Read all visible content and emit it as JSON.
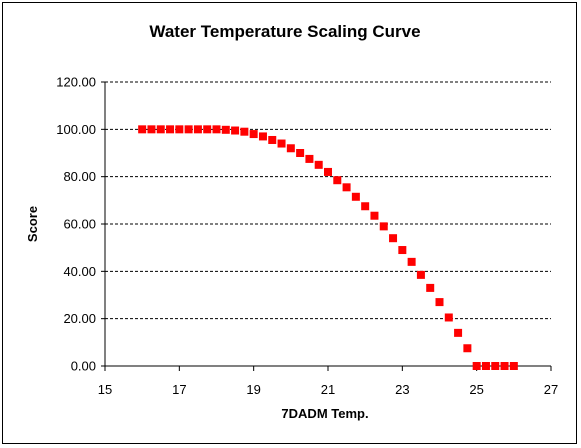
{
  "chart_data": {
    "type": "scatter",
    "title": "Water Temperature Scaling Curve",
    "xlabel": "7DADM Temp.",
    "ylabel": "Score",
    "xlim": [
      15,
      27
    ],
    "ylim": [
      0,
      120
    ],
    "x_ticks": [
      "15",
      "17",
      "19",
      "21",
      "23",
      "25",
      "27"
    ],
    "y_ticks": [
      "0.00",
      "20.00",
      "40.00",
      "60.00",
      "80.00",
      "100.00",
      "120.00"
    ],
    "grid": "horizontal-dashed",
    "legend": "none",
    "marker": {
      "shape": "square",
      "color": "#FF0000"
    },
    "series": [
      {
        "points": [
          [
            16.0,
            100
          ],
          [
            16.25,
            100
          ],
          [
            16.5,
            100
          ],
          [
            16.75,
            100
          ],
          [
            17.0,
            100
          ],
          [
            17.25,
            100
          ],
          [
            17.5,
            100
          ],
          [
            17.75,
            100
          ],
          [
            18.0,
            100
          ],
          [
            18.25,
            99.8
          ],
          [
            18.5,
            99.5
          ],
          [
            18.75,
            99
          ],
          [
            19.0,
            98
          ],
          [
            19.25,
            97
          ],
          [
            19.5,
            95.5
          ],
          [
            19.75,
            94
          ],
          [
            20.0,
            92
          ],
          [
            20.25,
            90
          ],
          [
            20.5,
            87.5
          ],
          [
            20.75,
            85
          ],
          [
            21.0,
            82
          ],
          [
            21.25,
            78.5
          ],
          [
            21.5,
            75.5
          ],
          [
            21.75,
            71.5
          ],
          [
            22.0,
            67.5
          ],
          [
            22.25,
            63.5
          ],
          [
            22.5,
            59
          ],
          [
            22.75,
            54
          ],
          [
            23.0,
            49
          ],
          [
            23.25,
            44
          ],
          [
            23.5,
            38.5
          ],
          [
            23.75,
            33
          ],
          [
            24.0,
            27
          ],
          [
            24.25,
            20.5
          ],
          [
            24.5,
            14
          ],
          [
            24.75,
            7.5
          ],
          [
            25.0,
            0
          ],
          [
            25.25,
            0
          ],
          [
            25.5,
            0
          ],
          [
            25.75,
            0
          ],
          [
            26.0,
            0
          ]
        ]
      }
    ]
  }
}
